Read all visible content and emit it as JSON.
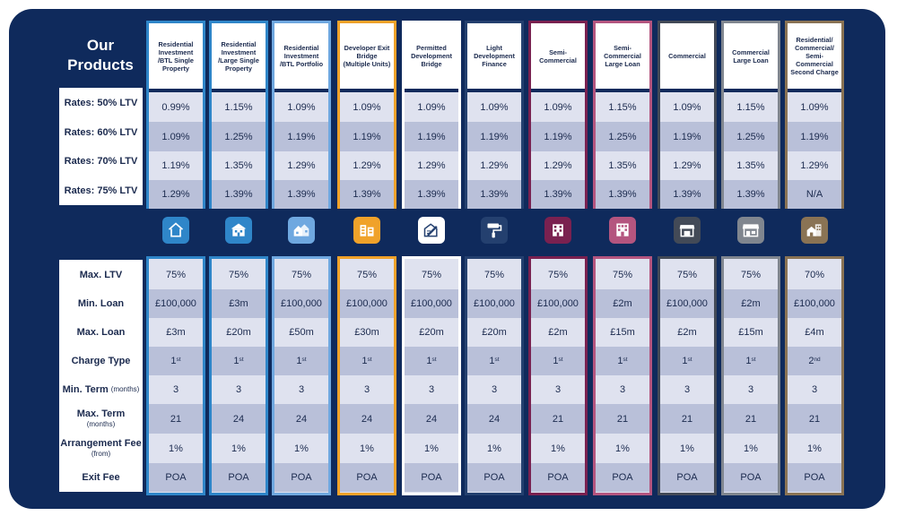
{
  "title_line1": "Our",
  "title_line2": "Products",
  "rate_labels": [
    "Rates: 50% LTV",
    "Rates: 60% LTV",
    "Rates: 70% LTV",
    "Rates: 75% LTV"
  ],
  "term_labels": {
    "max_ltv": "Max. LTV",
    "min_loan": "Min. Loan",
    "max_loan": "Max. Loan",
    "charge_type": "Charge Type",
    "min_term": "Min. Term",
    "min_term_unit": "(months)",
    "max_term": "Max. Term",
    "max_term_unit": "(months)",
    "arrangement_fee": "Arrangement Fee",
    "arrangement_fee_unit": "(from)",
    "exit_fee": "Exit Fee"
  },
  "products": [
    {
      "name": "Residential Investment /BTL Single Property",
      "color": "#2f86c9",
      "icon": "house-icon",
      "rates": [
        "0.99%",
        "1.09%",
        "1.19%",
        "1.29%"
      ],
      "max_ltv": "75%",
      "min_loan": "£100,000",
      "max_loan": "£3m",
      "charge": "1",
      "charge_sup": "st",
      "min_term": "3",
      "max_term": "21",
      "fee": "1%",
      "exit_fee": "POA"
    },
    {
      "name": "Residential Investment /Large Single Property",
      "color": "#2f86c9",
      "icon": "large-house-icon",
      "rates": [
        "1.15%",
        "1.25%",
        "1.35%",
        "1.39%"
      ],
      "max_ltv": "75%",
      "min_loan": "£3m",
      "max_loan": "£20m",
      "charge": "1",
      "charge_sup": "st",
      "min_term": "3",
      "max_term": "24",
      "fee": "1%",
      "exit_fee": "POA"
    },
    {
      "name": "Residential Investment /BTL Portfolio",
      "color": "#6fa8e0",
      "icon": "portfolio-houses-icon",
      "rates": [
        "1.09%",
        "1.19%",
        "1.29%",
        "1.39%"
      ],
      "max_ltv": "75%",
      "min_loan": "£100,000",
      "max_loan": "£50m",
      "charge": "1",
      "charge_sup": "st",
      "min_term": "3",
      "max_term": "24",
      "fee": "1%",
      "exit_fee": "POA"
    },
    {
      "name": "Developer Exit Bridge (Multiple Units)",
      "color": "#f0a22a",
      "icon": "multi-unit-building-icon",
      "rates": [
        "1.09%",
        "1.19%",
        "1.29%",
        "1.39%"
      ],
      "max_ltv": "75%",
      "min_loan": "£100,000",
      "max_loan": "£30m",
      "charge": "1",
      "charge_sup": "st",
      "min_term": "3",
      "max_term": "24",
      "fee": "1%",
      "exit_fee": "POA"
    },
    {
      "name": "Permitted Development Bridge",
      "color": "#ffffff",
      "icon": "plans-pencil-icon",
      "rates": [
        "1.09%",
        "1.19%",
        "1.29%",
        "1.39%"
      ],
      "max_ltv": "75%",
      "min_loan": "£100,000",
      "max_loan": "£20m",
      "charge": "1",
      "charge_sup": "st",
      "min_term": "3",
      "max_term": "24",
      "fee": "1%",
      "exit_fee": "POA"
    },
    {
      "name": "Light Development Finance",
      "color": "#24406f",
      "icon": "paint-roller-icon",
      "rates": [
        "1.09%",
        "1.19%",
        "1.29%",
        "1.39%"
      ],
      "max_ltv": "75%",
      "min_loan": "£100,000",
      "max_loan": "£20m",
      "charge": "1",
      "charge_sup": "st",
      "min_term": "3",
      "max_term": "24",
      "fee": "1%",
      "exit_fee": "POA"
    },
    {
      "name": "Semi-Commercial",
      "color": "#7a2150",
      "icon": "shop-building-icon",
      "rates": [
        "1.09%",
        "1.19%",
        "1.29%",
        "1.39%"
      ],
      "max_ltv": "75%",
      "min_loan": "£100,000",
      "max_loan": "£2m",
      "charge": "1",
      "charge_sup": "st",
      "min_term": "3",
      "max_term": "21",
      "fee": "1%",
      "exit_fee": "POA"
    },
    {
      "name": "Semi-Commercial Large Loan",
      "color": "#b4557f",
      "icon": "large-shop-building-icon",
      "rates": [
        "1.15%",
        "1.25%",
        "1.35%",
        "1.39%"
      ],
      "max_ltv": "75%",
      "min_loan": "£2m",
      "max_loan": "£15m",
      "charge": "1",
      "charge_sup": "st",
      "min_term": "3",
      "max_term": "21",
      "fee": "1%",
      "exit_fee": "POA"
    },
    {
      "name": "Commercial",
      "color": "#434a57",
      "icon": "storefront-icon",
      "rates": [
        "1.09%",
        "1.19%",
        "1.29%",
        "1.39%"
      ],
      "max_ltv": "75%",
      "min_loan": "£100,000",
      "max_loan": "£2m",
      "charge": "1",
      "charge_sup": "st",
      "min_term": "3",
      "max_term": "21",
      "fee": "1%",
      "exit_fee": "POA"
    },
    {
      "name": "Commercial Large Loan",
      "color": "#80868f",
      "icon": "large-storefront-icon",
      "rates": [
        "1.15%",
        "1.25%",
        "1.35%",
        "1.39%"
      ],
      "max_ltv": "75%",
      "min_loan": "£2m",
      "max_loan": "£15m",
      "charge": "1",
      "charge_sup": "st",
      "min_term": "3",
      "max_term": "21",
      "fee": "1%",
      "exit_fee": "POA"
    },
    {
      "name": "Residential/ Commercial/ Semi-Commercial Second Charge",
      "color": "#8a7354",
      "icon": "mixed-property-icon",
      "rates": [
        "1.09%",
        "1.19%",
        "1.29%",
        "N/A"
      ],
      "max_ltv": "70%",
      "min_loan": "£100,000",
      "max_loan": "£4m",
      "charge": "2",
      "charge_sup": "nd",
      "min_term": "3",
      "max_term": "21",
      "fee": "1%",
      "exit_fee": "POA"
    }
  ]
}
